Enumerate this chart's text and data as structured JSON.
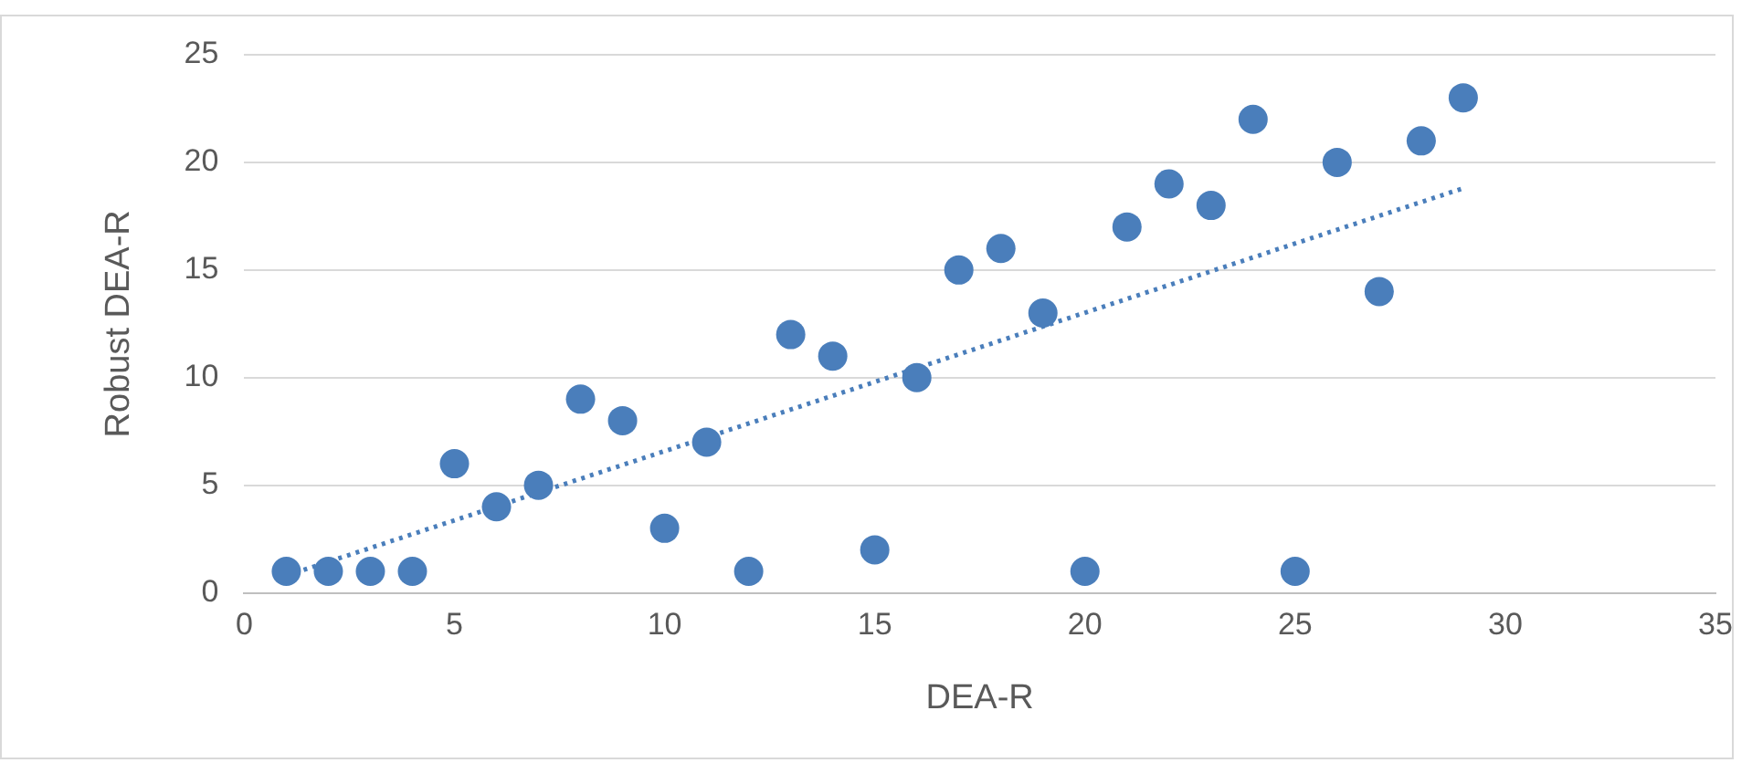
{
  "chart_data": {
    "type": "scatter",
    "xlabel": "DEA-R",
    "ylabel": "Robust DEA-R",
    "xlim": [
      0,
      35
    ],
    "xticks": [
      0,
      5,
      10,
      15,
      20,
      25,
      30,
      35
    ],
    "ylim": [
      0,
      25
    ],
    "yticks": [
      0,
      5,
      10,
      15,
      20,
      25
    ],
    "grid": "y",
    "legend": false,
    "marker": "circle",
    "series": [
      {
        "color": "#4a7ebb",
        "x": [
          1,
          2,
          3,
          4,
          5,
          6,
          7,
          8,
          9,
          10,
          11,
          12,
          13,
          14,
          15,
          16,
          17,
          18,
          19,
          20,
          21,
          22,
          23,
          24,
          25,
          26,
          27,
          28,
          29
        ],
        "values": [
          1,
          1,
          1,
          1,
          6,
          4,
          5,
          9,
          8,
          3,
          7,
          1,
          12,
          11,
          2,
          10,
          15,
          16,
          13,
          1,
          17,
          19,
          18,
          22,
          1,
          20,
          14,
          21,
          23
        ]
      },
      {
        "type": "line",
        "color": "#4a7ebb",
        "line_style": "dotted",
        "marker": "none",
        "x": [
          1,
          29
        ],
        "values": [
          0.8,
          18.8
        ]
      }
    ]
  }
}
